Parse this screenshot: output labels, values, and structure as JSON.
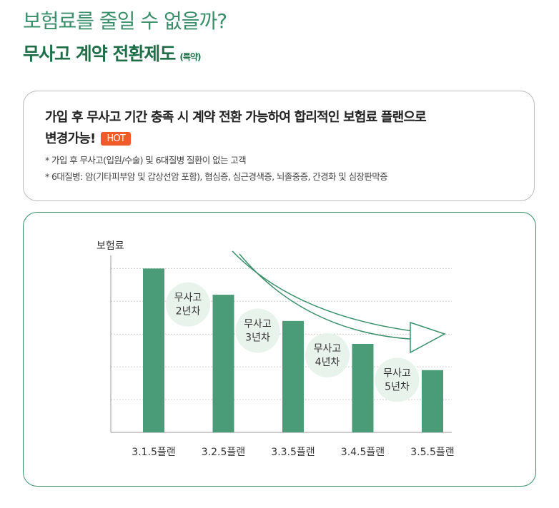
{
  "header": {
    "title": "보험료를 줄일 수 없을까?",
    "subtitle": "무사고 계약 전환제도",
    "subtitle_note": "(특약)"
  },
  "info": {
    "lines": [
      "가입 후 무사고 기간 충족 시 계약 전환 가능하여 합리적인 보험료 플랜으로",
      "변경가능!"
    ],
    "badge": "HOT",
    "notes": [
      "* 가입 후 무사고(입원/수술) 및 6대질병 질환이 없는 고객",
      "* 6대질병: 암(기타피부암 및 갑상선암 포함), 협심증, 심근경색증, 뇌졸중증, 간경화 및 심장판막증"
    ]
  },
  "chart_data": {
    "type": "bar",
    "y_label": "보험료",
    "categories": [
      "3.1.5플랜",
      "3.2.5플랜",
      "3.3.5플랜",
      "3.4.5플랜",
      "3.5.5플랜"
    ],
    "values": [
      5.0,
      4.2,
      3.4,
      2.7,
      1.9
    ],
    "color": "#4a9c78",
    "ylim": [
      0,
      5.4
    ],
    "ygrid": [
      1,
      2,
      3,
      4,
      5
    ],
    "grid": true,
    "annotations": [
      [
        "무사고",
        "2년차"
      ],
      [
        "무사고",
        "3년차"
      ],
      [
        "무사고",
        "4년차"
      ],
      [
        "무사고",
        "5년차"
      ]
    ]
  }
}
